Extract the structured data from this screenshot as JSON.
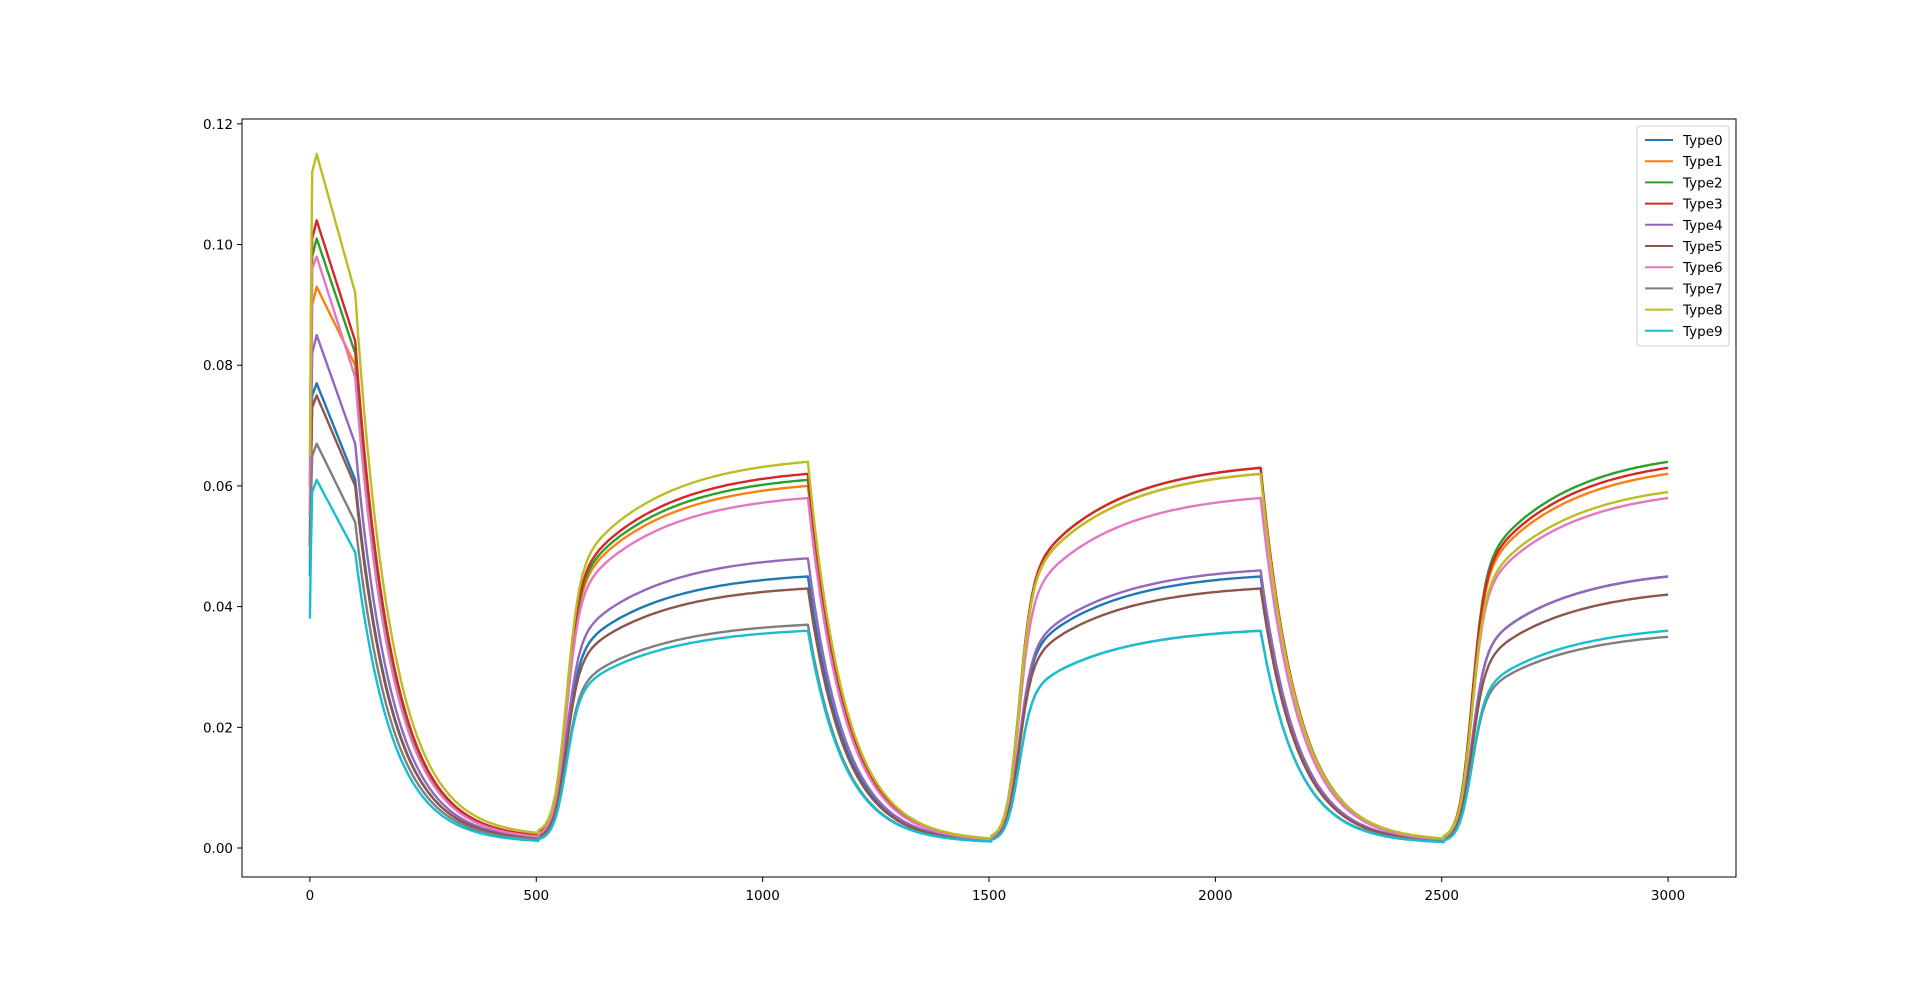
{
  "chart_data": {
    "type": "line",
    "title": "",
    "xlabel": "",
    "ylabel": "",
    "xlim": [
      -150,
      3150
    ],
    "ylim": [
      -0.0048,
      0.1208
    ],
    "xticks": [
      0,
      500,
      1000,
      1500,
      2000,
      2500,
      3000
    ],
    "xtick_labels": [
      "0",
      "500",
      "1000",
      "1500",
      "2000",
      "2500",
      "3000"
    ],
    "yticks": [
      0.0,
      0.02,
      0.04,
      0.06,
      0.08,
      0.1,
      0.12
    ],
    "ytick_labels": [
      "0.00",
      "0.02",
      "0.04",
      "0.06",
      "0.08",
      "0.10",
      "0.12"
    ],
    "grid": false,
    "legend": "top-right",
    "series": [
      {
        "name": "Type0",
        "color": "#1f77b4",
        "values": [
          0.045,
          0.075,
          0.077,
          0.061,
          0.0015,
          0.045,
          0.0012,
          0.045,
          0.0012,
          0.045
        ]
      },
      {
        "name": "Type1",
        "color": "#ff7f0e",
        "values": [
          0.05,
          0.09,
          0.093,
          0.08,
          0.002,
          0.06,
          0.0014,
          0.062,
          0.0015,
          0.062
        ]
      },
      {
        "name": "Type2",
        "color": "#2ca02c",
        "values": [
          0.055,
          0.098,
          0.101,
          0.082,
          0.002,
          0.061,
          0.0014,
          0.063,
          0.0015,
          0.064
        ]
      },
      {
        "name": "Type3",
        "color": "#d62728",
        "values": [
          0.06,
          0.101,
          0.104,
          0.084,
          0.0021,
          0.062,
          0.0015,
          0.063,
          0.0015,
          0.063
        ]
      },
      {
        "name": "Type4",
        "color": "#9467bd",
        "values": [
          0.05,
          0.082,
          0.085,
          0.067,
          0.0017,
          0.048,
          0.0013,
          0.046,
          0.0013,
          0.045
        ]
      },
      {
        "name": "Type5",
        "color": "#8c564b",
        "values": [
          0.05,
          0.073,
          0.075,
          0.06,
          0.0016,
          0.043,
          0.0012,
          0.043,
          0.0012,
          0.042
        ]
      },
      {
        "name": "Type6",
        "color": "#e377c2",
        "values": [
          0.055,
          0.096,
          0.098,
          0.078,
          0.0019,
          0.058,
          0.0014,
          0.058,
          0.0014,
          0.058
        ]
      },
      {
        "name": "Type7",
        "color": "#7f7f7f",
        "values": [
          0.048,
          0.065,
          0.067,
          0.054,
          0.0014,
          0.037,
          0.0011,
          0.036,
          0.0011,
          0.035
        ]
      },
      {
        "name": "Type8",
        "color": "#bcbd22",
        "values": [
          0.065,
          0.112,
          0.115,
          0.092,
          0.0025,
          0.064,
          0.0016,
          0.062,
          0.0016,
          0.059
        ]
      },
      {
        "name": "Type9",
        "color": "#17becf",
        "values": [
          0.038,
          0.059,
          0.061,
          0.049,
          0.0012,
          0.036,
          0.0011,
          0.036,
          0.001,
          0.036
        ]
      }
    ],
    "series_value_meaning": [
      "y at t=0",
      "value at t=5",
      "peak at t=15",
      "value at t=100",
      "trough at t=505",
      "plateau at t=1100",
      "trough at t=1505",
      "plateau at t=2100",
      "trough at t=2505",
      "end value at t=3000"
    ]
  }
}
